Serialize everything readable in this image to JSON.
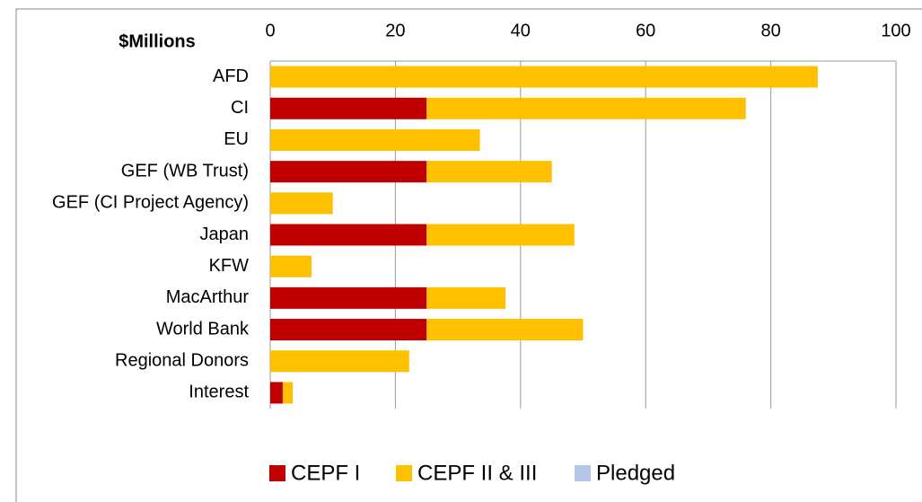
{
  "chart_data": {
    "type": "stacked_barh",
    "axis_label": "$Millions",
    "categories": [
      "AFD",
      "CI",
      "EU",
      "GEF (WB Trust)",
      "GEF (CI Project Agency)",
      "Japan",
      "KFW",
      "MacArthur",
      "World Bank",
      "Regional Donors",
      "Interest"
    ],
    "series": [
      {
        "name": "CEPF I",
        "color": "#c00000",
        "values": [
          0,
          25,
          0,
          25,
          0,
          25,
          0,
          25,
          25,
          0,
          2
        ]
      },
      {
        "name": "CEPF II & III",
        "color": "#ffc000",
        "values": [
          87.5,
          51,
          33.5,
          20,
          10,
          23.6,
          6.6,
          12.6,
          25,
          22.2,
          1.6
        ]
      },
      {
        "name": "Pledged",
        "color": "#b4c7e7",
        "values": [
          0,
          0,
          0,
          0,
          0,
          0,
          0,
          0,
          0,
          0,
          0
        ]
      }
    ],
    "xlim": [
      0,
      100
    ],
    "xticks": [
      0,
      20,
      40,
      60,
      80,
      100
    ],
    "grid": true,
    "legend": "bottom"
  }
}
